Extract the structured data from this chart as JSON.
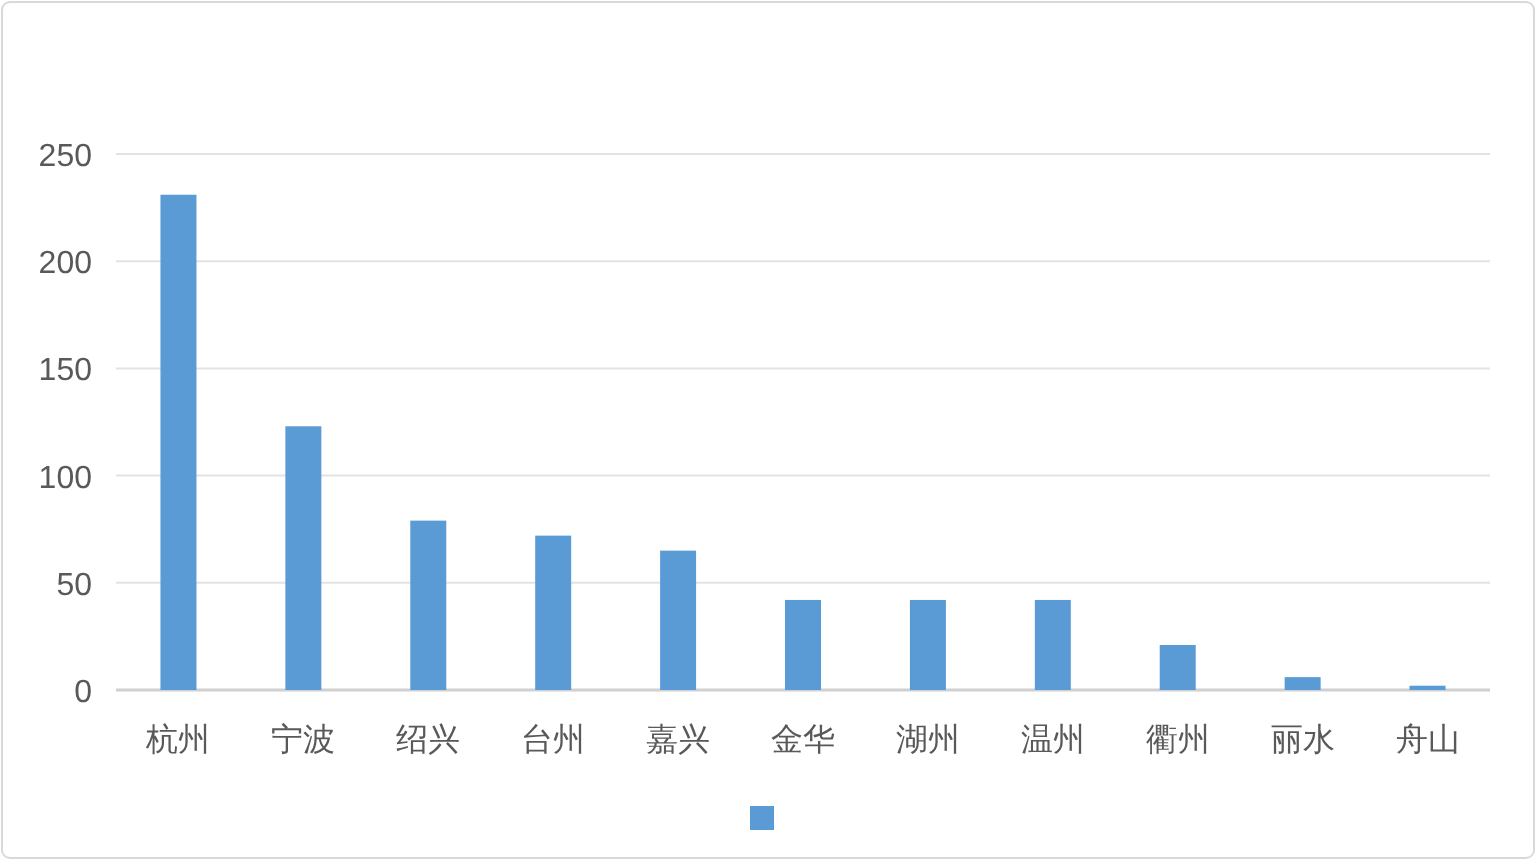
{
  "chart_data": {
    "type": "bar",
    "categories": [
      "杭州",
      "宁波",
      "绍兴",
      "台州",
      "嘉兴",
      "金华",
      "湖州",
      "温州",
      "衢州",
      "丽水",
      "舟山"
    ],
    "series": [
      {
        "color": "#5b9bd5",
        "values": [
          231,
          123,
          79,
          72,
          65,
          42,
          42,
          42,
          21,
          6,
          2
        ]
      }
    ],
    "ylim": [
      0,
      250
    ],
    "yticks": [
      0,
      50,
      100,
      150,
      200,
      250
    ],
    "grid": "y"
  }
}
